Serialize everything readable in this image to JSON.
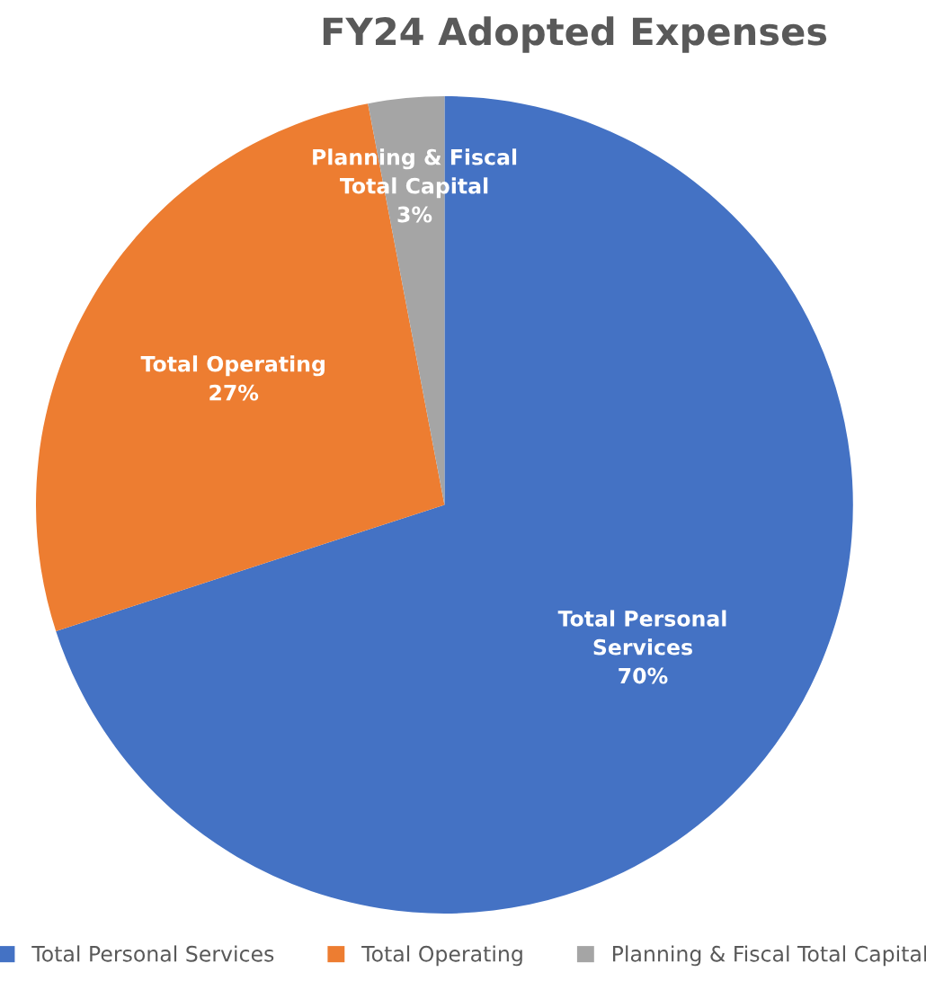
{
  "chart_data": {
    "type": "pie",
    "title": "FY24 Adopted Expenses",
    "categories": [
      "Total Personal Services",
      "Total Operating",
      "Planning & Fiscal Total Capital"
    ],
    "values": [
      70,
      27,
      3
    ],
    "colors": [
      "#4472c4",
      "#ed7d31",
      "#a5a5a5"
    ],
    "value_labels": [
      "70%",
      "27%",
      "3%"
    ],
    "legend": "bottom"
  }
}
